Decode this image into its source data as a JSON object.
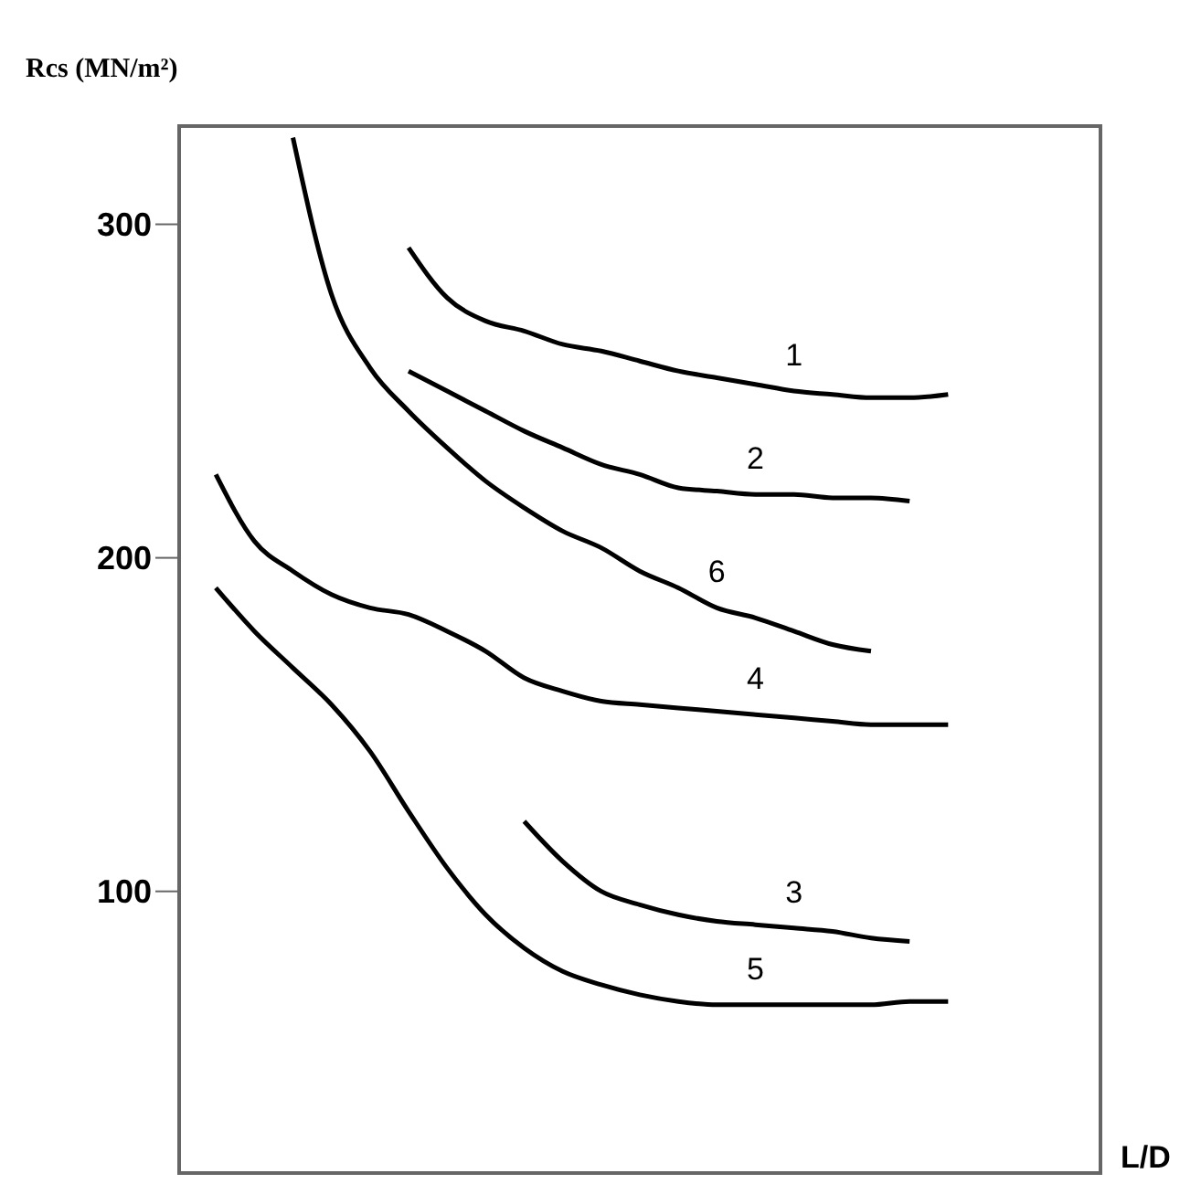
{
  "chart_data": {
    "type": "line",
    "xlabel": "L/D",
    "ylabel": "Rcs  (MN/m²)",
    "categories": [
      null,
      null,
      null,
      null,
      null,
      null,
      null,
      null,
      null,
      null,
      null,
      null,
      null,
      null,
      null,
      null,
      null,
      null,
      null,
      null,
      null,
      null,
      null,
      null,
      null
    ],
    "ylim": [
      15,
      330
    ],
    "yticks": [
      100,
      200,
      300
    ],
    "marker": "none",
    "line_style": "solid",
    "series": [
      {
        "name": "1",
        "color": "#000000",
        "values": [
          null,
          null,
          null,
          null,
          null,
          null,
          293,
          278,
          271,
          268,
          264,
          262,
          259,
          256,
          254,
          252,
          250,
          249,
          248,
          248,
          249,
          null,
          null,
          null,
          null
        ]
      },
      {
        "name": "2",
        "color": "#000000",
        "values": [
          null,
          null,
          null,
          null,
          null,
          null,
          256,
          250,
          244,
          238,
          233,
          228,
          225,
          221,
          220,
          219,
          219,
          218,
          218,
          217,
          null,
          null,
          null,
          null,
          null
        ]
      },
      {
        "name": "6",
        "color": "#000000",
        "values": [
          null,
          null,
          null,
          326,
          279,
          257,
          244,
          233,
          223,
          215,
          208,
          203,
          196,
          191,
          185,
          182,
          178,
          174,
          172,
          null,
          null,
          null,
          null,
          null,
          null
        ]
      },
      {
        "name": "4",
        "color": "#000000",
        "values": [
          null,
          225,
          205,
          196,
          189,
          185,
          183,
          178,
          172,
          164,
          160,
          157,
          156,
          155,
          154,
          153,
          152,
          151,
          150,
          150,
          150,
          null,
          null,
          null,
          null
        ]
      },
      {
        "name": "3",
        "color": "#000000",
        "values": [
          null,
          null,
          null,
          null,
          null,
          null,
          null,
          null,
          null,
          121,
          109,
          100,
          96,
          93,
          91,
          90,
          89,
          88,
          86,
          85,
          null,
          null,
          null,
          null,
          null
        ]
      },
      {
        "name": "5",
        "color": "#000000",
        "values": [
          null,
          191,
          178,
          167,
          156,
          142,
          124,
          107,
          93,
          83,
          76,
          72,
          69,
          67,
          66,
          66,
          66,
          66,
          66,
          67,
          67,
          null,
          null,
          null,
          null
        ]
      }
    ]
  }
}
